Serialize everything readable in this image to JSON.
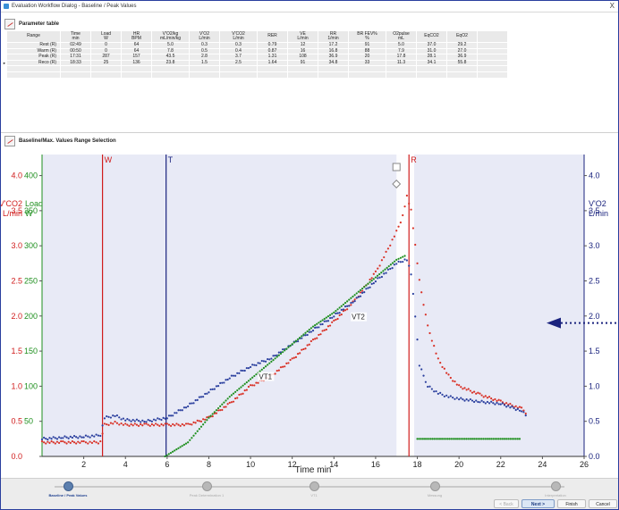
{
  "window": {
    "title": "Evaluation Workflow Dialog - Baseline / Peak Values",
    "close_glyph": "X"
  },
  "parameter_table": {
    "title": "Parameter table",
    "headers": [
      [
        "Range",
        ""
      ],
      [
        "Time",
        "min"
      ],
      [
        "Load",
        "W"
      ],
      [
        "HR",
        "BPM"
      ],
      [
        "V'O2/kg",
        "mL/min/kg"
      ],
      [
        "V'O2",
        "L/min"
      ],
      [
        "V'CO2",
        "L/min"
      ],
      [
        "RER",
        ""
      ],
      [
        "VE",
        "L/min"
      ],
      [
        "RR",
        "1/min"
      ],
      [
        "BR FEV%",
        "%"
      ],
      [
        "O2pulse",
        "mL"
      ],
      [
        "EqCO2",
        ""
      ],
      [
        "EqO2",
        ""
      ]
    ],
    "rows": [
      [
        "Rest (R)",
        "02:49",
        "0",
        "64",
        "5.0",
        "0.3",
        "0.3",
        "0.79",
        "12",
        "17.2",
        "91",
        "5.0",
        "37.0",
        "29.2"
      ],
      [
        "Warm (R)",
        "00:50",
        "0",
        "64",
        "7.8",
        "0.5",
        "0.4",
        "0.87",
        "16",
        "16.8",
        "88",
        "7.9",
        "31.0",
        "27.0"
      ],
      [
        "Peak (R)",
        "17:31",
        "287",
        "157",
        "43.5",
        "2.8",
        "3.7",
        "1.31",
        "108",
        "36.9",
        "20",
        "17.8",
        "28.1",
        "36.9"
      ],
      [
        "Reco (R)",
        "18:33",
        "25",
        "136",
        "23.8",
        "1.5",
        "2.5",
        "1.64",
        "91",
        "34.8",
        "33",
        "11.3",
        "34.1",
        "55.8"
      ]
    ],
    "selected_row_marker": "►"
  },
  "range_selection": {
    "title": "Baseline/Max. Values Range Selection"
  },
  "chart_data": {
    "type": "scatter",
    "title": "",
    "xlabel": "Time  min",
    "xlim": [
      0,
      26
    ],
    "xticks": [
      2,
      4,
      6,
      8,
      10,
      12,
      14,
      16,
      18,
      20,
      22,
      24,
      26
    ],
    "left_axis_vco2": {
      "label_lines": [
        "V'CO2",
        "L/min"
      ],
      "ticks": [
        "0.0",
        "0.5",
        "1.0",
        "1.5",
        "2.0",
        "2.5",
        "3.0",
        "3.5",
        "4.0"
      ],
      "color": "#d01c1c"
    },
    "left_axis_load": {
      "label_lines": [
        "Load",
        "W"
      ],
      "ticks": [
        "50",
        "100",
        "150",
        "200",
        "250",
        "300",
        "350",
        "400"
      ],
      "color": "#1e8f1e"
    },
    "right_axis_vo2": {
      "label_lines": [
        "V'O2",
        "L/min"
      ],
      "ticks": [
        "0.0",
        "0.5",
        "1.0",
        "1.5",
        "2.0",
        "2.5",
        "3.0",
        "3.5",
        "4.0"
      ],
      "color": "#1a237e"
    },
    "ylim": [
      0,
      4.3
    ],
    "markers": [
      {
        "label": "W",
        "x": 2.9,
        "color": "#d01c1c"
      },
      {
        "label": "T",
        "x": 5.95,
        "color": "#1a237e"
      },
      {
        "label": "R",
        "x": 17.6,
        "color": "#d01c1c"
      }
    ],
    "peak_band": [
      17.0,
      17.85
    ],
    "thresholds": [
      {
        "label": "VT1",
        "x": 10.4,
        "y": 1.1
      },
      {
        "label": "VT2",
        "x": 14.85,
        "y": 1.95
      }
    ],
    "series": [
      {
        "name": "",
        "axis": "vco2",
        "color": "#d93025",
        "x": [
          0,
          1,
          2,
          2.8,
          3.0,
          3.5,
          4,
          5,
          6,
          7,
          8,
          9,
          10,
          11,
          12,
          13,
          14,
          15,
          16,
          16.5,
          17,
          17.3,
          17.5,
          17.7,
          17.9,
          18.1,
          18.5,
          19,
          19.5,
          20,
          21,
          22,
          23,
          23.3
        ],
        "y": [
          0.2,
          0.2,
          0.2,
          0.2,
          0.45,
          0.48,
          0.45,
          0.45,
          0.45,
          0.45,
          0.55,
          0.75,
          1.0,
          1.15,
          1.38,
          1.65,
          1.92,
          2.22,
          2.62,
          2.9,
          3.2,
          3.42,
          3.7,
          3.5,
          3.0,
          2.5,
          1.85,
          1.38,
          1.15,
          1.0,
          0.88,
          0.78,
          0.68,
          0.6
        ]
      },
      {
        "name": "",
        "axis": "vo2",
        "color": "#2a3f9e",
        "x": [
          0,
          1,
          2,
          2.8,
          3.0,
          3.5,
          4,
          5,
          6,
          7,
          8,
          9,
          10,
          11,
          12,
          13,
          14,
          15,
          16,
          16.5,
          17,
          17.3,
          17.5,
          17.7,
          17.9,
          18.1,
          18.5,
          19,
          19.5,
          20,
          21,
          22,
          23,
          23.3
        ],
        "y": [
          0.25,
          0.27,
          0.28,
          0.3,
          0.55,
          0.58,
          0.52,
          0.5,
          0.55,
          0.72,
          0.92,
          1.12,
          1.28,
          1.4,
          1.6,
          1.8,
          2.0,
          2.22,
          2.5,
          2.62,
          2.75,
          2.78,
          2.8,
          2.6,
          2.0,
          1.3,
          1.0,
          0.9,
          0.85,
          0.82,
          0.78,
          0.75,
          0.65,
          0.55
        ]
      },
      {
        "name": "",
        "axis": "load",
        "color": "#1e8f1e",
        "x": [
          5.9,
          7,
          8,
          9,
          10,
          11,
          12,
          13,
          14,
          15,
          16,
          17,
          17.5
        ],
        "y": [
          0,
          20,
          55,
          85,
          110,
          135,
          160,
          185,
          205,
          230,
          255,
          280,
          287
        ]
      },
      {
        "name": "",
        "axis": "load",
        "color": "#1e8f1e",
        "x": [
          18.0,
          19,
          20,
          21,
          22,
          23
        ],
        "y": [
          25,
          25,
          25,
          25,
          25,
          25
        ]
      }
    ]
  },
  "wizard": {
    "steps": [
      {
        "label": "Baseline / Peak Values",
        "active": true
      },
      {
        "label": "Peak Determination 1",
        "active": false
      },
      {
        "label": "VT1",
        "active": false
      },
      {
        "label": "Messung",
        "active": false
      },
      {
        "label": "Interpretation",
        "active": false
      }
    ],
    "buttons": {
      "back": "< Back",
      "next": "Next >",
      "finish": "Finish",
      "cancel": "Cancel"
    }
  }
}
